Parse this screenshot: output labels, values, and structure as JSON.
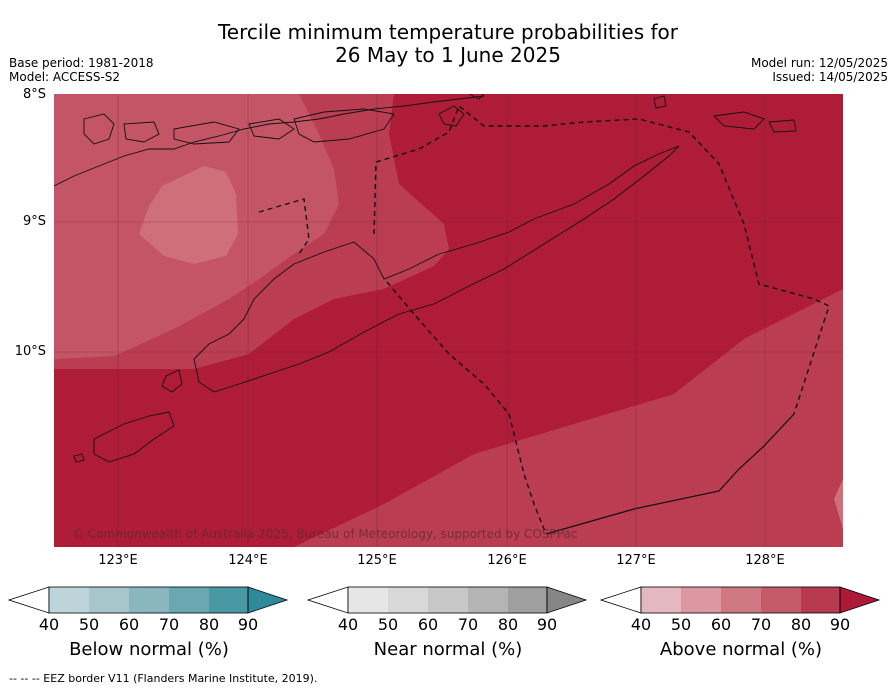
{
  "title_line1": "Tercile minimum temperature probabilities for",
  "title_line2": "26 May to 1 June 2025",
  "meta_left": [
    "Base period: 1981-2018",
    "Model: ACCESS-S2"
  ],
  "meta_right": [
    "Model run: 12/05/2025",
    "Issued: 14/05/2025"
  ],
  "lat_labels": [
    "8°S",
    "9°S",
    "10°S"
  ],
  "lon_labels": [
    "123°E",
    "124°E",
    "125°E",
    "126°E",
    "127°E",
    "128°E"
  ],
  "copyright": "© Commonwealth of Australia 2025, Bureau of Meteorology, supported by COSPPac",
  "colorbars": [
    {
      "label": "Below normal (%)",
      "ticks": [
        "40",
        "50",
        "60",
        "70",
        "80",
        "90"
      ],
      "colors": [
        "#bdd4da",
        "#a6c6cc",
        "#89b6bf",
        "#6aa7b2",
        "#4b98a5",
        "#2e8a99"
      ]
    },
    {
      "label": "Near normal (%)",
      "ticks": [
        "40",
        "50",
        "60",
        "70",
        "80",
        "90"
      ],
      "colors": [
        "#e6e6e6",
        "#d8d8d8",
        "#c8c8c8",
        "#b4b4b4",
        "#9f9f9f",
        "#868686"
      ]
    },
    {
      "label": "Above normal (%)",
      "ticks": [
        "40",
        "50",
        "60",
        "70",
        "80",
        "90"
      ],
      "colors": [
        "#e4b8c0",
        "#dc97a1",
        "#d07882",
        "#c55a68",
        "#b83a4f",
        "#ad1a38"
      ]
    }
  ],
  "footnote": "--  --  -- EEZ border V11 (Flanders Marine Institute, 2019).",
  "field_colors": {
    "p90": "#ae1c38",
    "p80": "#bb3d51",
    "p70": "#c45566",
    "p60": "#cf6f7a"
  }
}
